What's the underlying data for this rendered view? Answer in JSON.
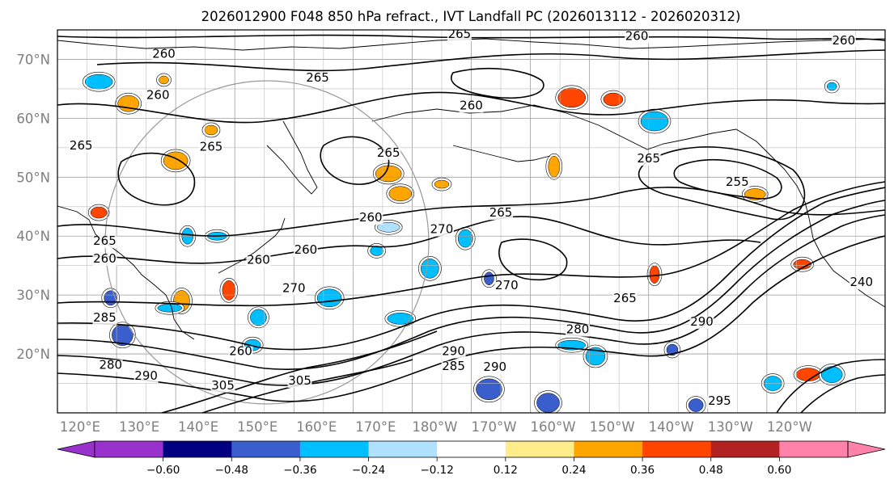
{
  "title": "2026012900 F048 850 hPa refract., IVT Landfall PC (2026013112 - 2026020312)",
  "map": {
    "lat_labels": [
      "70°N",
      "60°N",
      "50°N",
      "40°N",
      "30°N",
      "20°N"
    ],
    "lat_values": [
      70,
      60,
      50,
      40,
      30,
      20
    ],
    "lat_range": [
      10,
      75
    ],
    "lon_labels": [
      "120°E",
      "130°E",
      "140°E",
      "150°E",
      "160°E",
      "170°E",
      "180°W",
      "170°W",
      "160°W",
      "150°W",
      "140°W",
      "130°W",
      "120°W"
    ],
    "lon_values": [
      120,
      130,
      140,
      150,
      160,
      170,
      180,
      190,
      200,
      210,
      220,
      230,
      240
    ],
    "lon_range": [
      120,
      260
    ],
    "grid": true,
    "contour_labels": [
      {
        "text": "265",
        "lon": 188,
        "lat": 73.6
      },
      {
        "text": "260",
        "lon": 218,
        "lat": 73.3
      },
      {
        "text": "260",
        "lon": 253,
        "lat": 72.5
      },
      {
        "text": "260",
        "lon": 138,
        "lat": 70.3
      },
      {
        "text": "265",
        "lon": 164,
        "lat": 66.2
      },
      {
        "text": "260",
        "lon": 137,
        "lat": 63.3
      },
      {
        "text": "260",
        "lon": 190,
        "lat": 61.5
      },
      {
        "text": "265",
        "lon": 124,
        "lat": 54.7
      },
      {
        "text": "265",
        "lon": 146,
        "lat": 54.5
      },
      {
        "text": "265",
        "lon": 176,
        "lat": 53.5
      },
      {
        "text": "265",
        "lon": 220,
        "lat": 52.5
      },
      {
        "text": "255",
        "lon": 235,
        "lat": 48.5
      },
      {
        "text": "265",
        "lon": 195,
        "lat": 43.3
      },
      {
        "text": "260",
        "lon": 173,
        "lat": 42.5
      },
      {
        "text": "270",
        "lon": 185,
        "lat": 40.5
      },
      {
        "text": "265",
        "lon": 128,
        "lat": 38.5
      },
      {
        "text": "260",
        "lon": 162,
        "lat": 37.0
      },
      {
        "text": "260",
        "lon": 154,
        "lat": 35.3
      },
      {
        "text": "270",
        "lon": 160,
        "lat": 30.5
      },
      {
        "text": "265",
        "lon": 216,
        "lat": 28.8
      },
      {
        "text": "270",
        "lon": 196,
        "lat": 31.0
      },
      {
        "text": "280",
        "lon": 208,
        "lat": 23.5
      },
      {
        "text": "290",
        "lon": 229,
        "lat": 24.8
      },
      {
        "text": "290",
        "lon": 187,
        "lat": 19.8
      },
      {
        "text": "285",
        "lon": 187,
        "lat": 17.3
      },
      {
        "text": "290",
        "lon": 194,
        "lat": 17.1
      },
      {
        "text": "305",
        "lon": 161,
        "lat": 14.8
      },
      {
        "text": "290",
        "lon": 135,
        "lat": 15.6
      },
      {
        "text": "305",
        "lon": 148,
        "lat": 14.0
      },
      {
        "text": "295",
        "lon": 232,
        "lat": 11.4
      },
      {
        "text": "240",
        "lon": 256,
        "lat": 31.5
      },
      {
        "text": "285",
        "lon": 128,
        "lat": 25.5
      },
      {
        "text": "260",
        "lon": 151,
        "lat": 19.8
      },
      {
        "text": "280",
        "lon": 129,
        "lat": 17.5
      },
      {
        "text": "260",
        "lon": 128,
        "lat": 35.5
      }
    ]
  },
  "colorbar": {
    "labels": [
      "−0.60",
      "−0.48",
      "−0.36",
      "−0.24",
      "−0.12",
      "0.12",
      "0.24",
      "0.36",
      "0.48",
      "0.60"
    ],
    "colors": [
      "#9932cc",
      "#000080",
      "#3a5fcd",
      "#00bfff",
      "#b0e2ff",
      "#ffffff",
      "#ffec8b",
      "#ffa500",
      "#ff4500",
      "#b22222",
      "#ff82ab"
    ]
  },
  "shading_patches": [
    {
      "lon": 138,
      "lat": 66.5,
      "color": "#ffa500"
    },
    {
      "lon": 132,
      "lat": 62.5,
      "color": "#ffa500"
    },
    {
      "lon": 146,
      "lat": 58.0,
      "color": "#ffa500"
    },
    {
      "lon": 140,
      "lat": 52.8,
      "color": "#ffa500"
    },
    {
      "lon": 127,
      "lat": 44.0,
      "color": "#ff4500"
    },
    {
      "lon": 207,
      "lat": 63.5,
      "color": "#ff4500"
    },
    {
      "lon": 214,
      "lat": 63.2,
      "color": "#ff4500"
    },
    {
      "lon": 204,
      "lat": 51.8,
      "color": "#ffa500"
    },
    {
      "lon": 178,
      "lat": 47.2,
      "color": "#ffa500"
    },
    {
      "lon": 185,
      "lat": 48.8,
      "color": "#ffa500"
    },
    {
      "lon": 176,
      "lat": 50.6,
      "color": "#ffa500"
    },
    {
      "lon": 246,
      "lat": 35.2,
      "color": "#ff4500"
    },
    {
      "lon": 221,
      "lat": 33.5,
      "color": "#ff4500"
    },
    {
      "lon": 238,
      "lat": 47.1,
      "color": "#ffa500"
    },
    {
      "lon": 149,
      "lat": 30.8,
      "color": "#ff4500"
    },
    {
      "lon": 247,
      "lat": 16.5,
      "color": "#ff4500"
    },
    {
      "lon": 141,
      "lat": 29.0,
      "color": "#ffa500"
    },
    {
      "lon": 127,
      "lat": 66.2,
      "color": "#00bfff"
    },
    {
      "lon": 147,
      "lat": 40.0,
      "color": "#00bfff"
    },
    {
      "lon": 142,
      "lat": 40.0,
      "color": "#00bfff"
    },
    {
      "lon": 176,
      "lat": 41.5,
      "color": "#b0e2ff"
    },
    {
      "lon": 189,
      "lat": 39.6,
      "color": "#00bfff"
    },
    {
      "lon": 178,
      "lat": 26.0,
      "color": "#00bfff"
    },
    {
      "lon": 183,
      "lat": 34.5,
      "color": "#00bfff"
    },
    {
      "lon": 193,
      "lat": 32.8,
      "color": "#3a5fcd"
    },
    {
      "lon": 131,
      "lat": 23.2,
      "color": "#3a5fcd"
    },
    {
      "lon": 129,
      "lat": 29.5,
      "color": "#3a5fcd"
    },
    {
      "lon": 139,
      "lat": 27.8,
      "color": "#00bfff"
    },
    {
      "lon": 154,
      "lat": 26.2,
      "color": "#00bfff"
    },
    {
      "lon": 207,
      "lat": 21.5,
      "color": "#00bfff"
    },
    {
      "lon": 211,
      "lat": 19.6,
      "color": "#00bfff"
    },
    {
      "lon": 224,
      "lat": 20.7,
      "color": "#3a5fcd"
    },
    {
      "lon": 203,
      "lat": 11.7,
      "color": "#3a5fcd"
    },
    {
      "lon": 228,
      "lat": 11.3,
      "color": "#3a5fcd"
    },
    {
      "lon": 193,
      "lat": 14.0,
      "color": "#3a5fcd"
    },
    {
      "lon": 241,
      "lat": 15.0,
      "color": "#00bfff"
    },
    {
      "lon": 251,
      "lat": 65.4,
      "color": "#00bfff"
    },
    {
      "lon": 251,
      "lat": 16.5,
      "color": "#00bfff"
    },
    {
      "lon": 174,
      "lat": 37.5,
      "color": "#00bfff"
    },
    {
      "lon": 166,
      "lat": 29.5,
      "color": "#00bfff"
    },
    {
      "lon": 153,
      "lat": 21.5,
      "color": "#00bfff"
    },
    {
      "lon": 221,
      "lat": 59.5,
      "color": "#00bfff"
    }
  ]
}
